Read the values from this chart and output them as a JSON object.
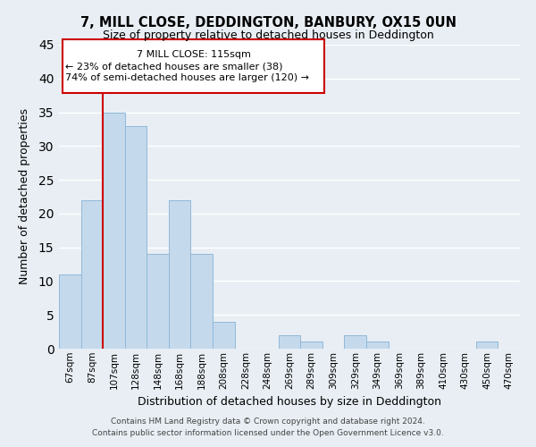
{
  "title": "7, MILL CLOSE, DEDDINGTON, BANBURY, OX15 0UN",
  "subtitle": "Size of property relative to detached houses in Deddington",
  "xlabel": "Distribution of detached houses by size in Deddington",
  "ylabel": "Number of detached properties",
  "bar_color": "#c5d9ec",
  "bar_edge_color": "#90b8d8",
  "background_color": "#e8eef4",
  "grid_color": "#ffffff",
  "bin_labels": [
    "67sqm",
    "87sqm",
    "107sqm",
    "128sqm",
    "148sqm",
    "168sqm",
    "188sqm",
    "208sqm",
    "228sqm",
    "248sqm",
    "269sqm",
    "289sqm",
    "309sqm",
    "329sqm",
    "349sqm",
    "369sqm",
    "389sqm",
    "410sqm",
    "430sqm",
    "450sqm",
    "470sqm"
  ],
  "bar_heights": [
    11,
    22,
    35,
    33,
    14,
    22,
    14,
    4,
    0,
    0,
    2,
    1,
    0,
    2,
    1,
    0,
    0,
    0,
    0,
    1,
    0
  ],
  "vline_color": "#cc0000",
  "vline_x_index": 2,
  "ylim": [
    0,
    45
  ],
  "yticks": [
    0,
    5,
    10,
    15,
    20,
    25,
    30,
    35,
    40,
    45
  ],
  "annotation_line1": "7 MILL CLOSE: 115sqm",
  "annotation_line2": "← 23% of detached houses are smaller (38)",
  "annotation_line3": "74% of semi-detached houses are larger (120) →",
  "footer_line1": "Contains HM Land Registry data © Crown copyright and database right 2024.",
  "footer_line2": "Contains public sector information licensed under the Open Government Licence v3.0."
}
